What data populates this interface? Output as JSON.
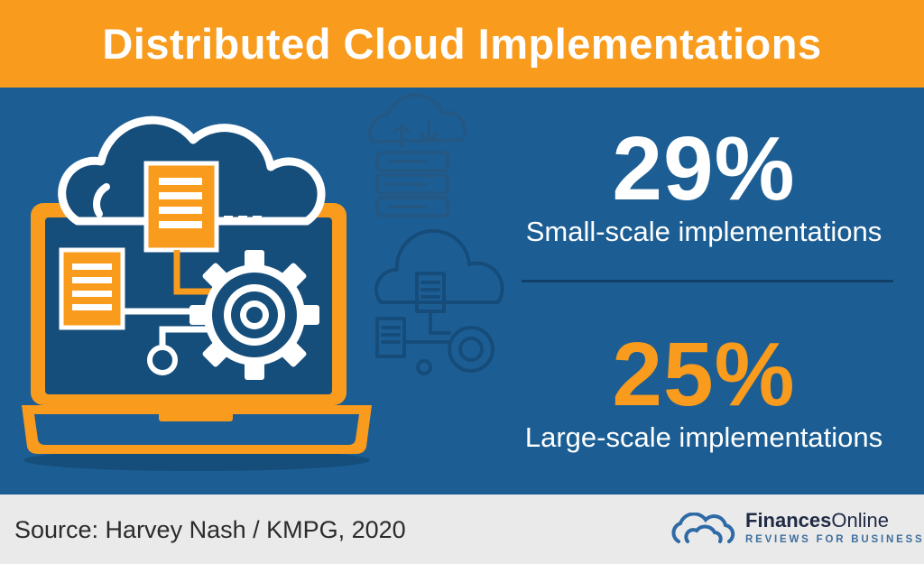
{
  "header": {
    "title": "Distributed Cloud Implementations"
  },
  "stats": [
    {
      "value": "29%",
      "label": "Small-scale implementations"
    },
    {
      "value": "25%",
      "label": "Large-scale implementations"
    }
  ],
  "footer": {
    "source": "Source: Harvey Nash / KMPG, 2020",
    "brand_name_bold": "Finances",
    "brand_name_light": "Online",
    "brand_tagline": "REVIEWS FOR BUSINESS"
  },
  "colors": {
    "header_bg": "#f99b1c",
    "panel_bg": "#1c5e94",
    "accent_orange": "#f99b1c",
    "footer_bg": "#eaeaea"
  },
  "icons": [
    "laptop-cloud-network-icon",
    "cloud-server-icon",
    "cloud-network-icon",
    "cloud-logo-icon"
  ]
}
